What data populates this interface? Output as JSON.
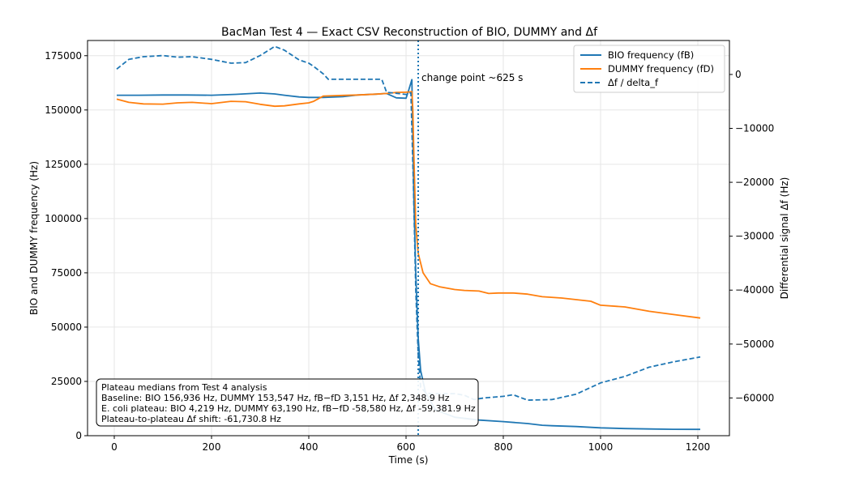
{
  "chart_data": {
    "type": "line",
    "title": "BacMan Test 4 — Exact CSV Reconstruction of BIO, DUMMY and Δf",
    "xlabel": "Time (s)",
    "ylabel": "BIO and DUMMY frequency (Hz)",
    "y2label": "Differential signal Δf (Hz)",
    "xlim": [
      -55,
      1265
    ],
    "ylim": [
      0,
      182000
    ],
    "y2lim": [
      -67000,
      6300
    ],
    "xticks": [
      0,
      200,
      400,
      600,
      800,
      1000,
      1200
    ],
    "yticks": [
      0,
      25000,
      50000,
      75000,
      100000,
      125000,
      150000,
      175000
    ],
    "y2ticks": [
      -60000,
      -50000,
      -40000,
      -30000,
      -20000,
      -10000,
      0
    ],
    "grid": true,
    "legend_position": "top-right",
    "colors": {
      "bio": "#1f77b4",
      "dummy": "#ff7f0e",
      "delta": "#1f77b4"
    },
    "series": [
      {
        "name": "BIO frequency (fB)",
        "axis": "left",
        "style": "solid",
        "x": [
          5,
          50,
          100,
          150,
          200,
          250,
          300,
          330,
          350,
          380,
          400,
          430,
          470,
          500,
          540,
          560,
          580,
          600,
          606,
          612,
          616,
          620,
          625,
          630,
          640,
          660,
          700,
          750,
          800,
          850,
          880,
          900,
          950,
          1000,
          1050,
          1100,
          1150,
          1205
        ],
        "y": [
          156800,
          156800,
          156900,
          156900,
          156800,
          157200,
          157800,
          157400,
          156800,
          156000,
          155800,
          155800,
          156100,
          156900,
          157300,
          157600,
          155600,
          155400,
          159500,
          164000,
          110000,
          75000,
          45000,
          30000,
          20000,
          12000,
          8500,
          7200,
          6500,
          5600,
          4800,
          4600,
          4200,
          3600,
          3300,
          3100,
          2950,
          2900
        ]
      },
      {
        "name": "DUMMY frequency (fD)",
        "axis": "left",
        "style": "solid",
        "x": [
          5,
          30,
          60,
          100,
          130,
          160,
          200,
          240,
          270,
          300,
          330,
          350,
          380,
          400,
          410,
          430,
          470,
          500,
          540,
          560,
          580,
          600,
          608,
          612,
          614,
          616,
          620,
          625,
          635,
          650,
          670,
          700,
          720,
          750,
          770,
          790,
          820,
          850,
          880,
          920,
          980,
          1000,
          1050,
          1100,
          1150,
          1205
        ],
        "y": [
          155000,
          153500,
          152800,
          152700,
          153300,
          153500,
          152900,
          154000,
          153800,
          152600,
          151700,
          151900,
          152800,
          153300,
          154000,
          156400,
          156700,
          156900,
          157300,
          157600,
          158100,
          158200,
          158300,
          158500,
          150000,
          130000,
          97000,
          84000,
          75000,
          70000,
          68500,
          67300,
          66900,
          66600,
          65500,
          65700,
          65700,
          65200,
          64000,
          63400,
          61900,
          60100,
          59300,
          57300,
          55800,
          54200
        ]
      },
      {
        "name": "Δf / delta_f",
        "axis": "right",
        "style": "dashed",
        "x": [
          5,
          30,
          60,
          100,
          130,
          160,
          200,
          240,
          270,
          300,
          330,
          350,
          380,
          400,
          410,
          430,
          440,
          500,
          550,
          560,
          580,
          600,
          605,
          610,
          615,
          620,
          625,
          630,
          640,
          650,
          700,
          720,
          740,
          760,
          800,
          820,
          850,
          900,
          950,
          1000,
          1050,
          1100,
          1150,
          1205
        ],
        "y": [
          1000,
          2800,
          3300,
          3500,
          3200,
          3300,
          2800,
          2100,
          2200,
          3500,
          5200,
          4500,
          2700,
          2100,
          1500,
          100,
          -900,
          -900,
          -900,
          -3300,
          -3500,
          -3700,
          -3600,
          -3400,
          -20000,
          -40000,
          -52000,
          -58000,
          -59000,
          -59200,
          -59200,
          -59500,
          -60300,
          -60000,
          -59700,
          -59400,
          -60400,
          -60300,
          -59300,
          -57200,
          -56000,
          -54300,
          -53300,
          -52400
        ]
      }
    ],
    "annotations": {
      "change_point_x": 625,
      "change_point_label": "change point ~625 s",
      "note_lines": [
        "Plateau medians from Test 4 analysis",
        "Baseline: BIO 156,936 Hz, DUMMY 153,547 Hz, fB−fD 3,151 Hz, Δf 2,348.9 Hz",
        "E. coli plateau: BIO 4,219 Hz, DUMMY 63,190 Hz, fB−fD -58,580 Hz, Δf -59,381.9 Hz",
        "Plateau-to-plateau Δf shift: -61,730.8 Hz"
      ]
    }
  }
}
